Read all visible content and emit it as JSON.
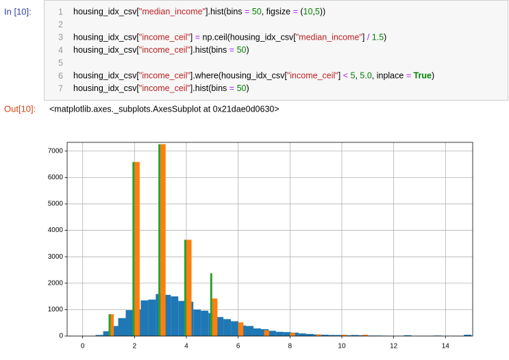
{
  "cell": {
    "prompt_in": "In [10]:",
    "code_lines": [
      {
        "number": 1,
        "code": "housing_idx_csv[\"median_income\"].hist(bins = 50, figsize = (10,5))"
      },
      {
        "number": 2
      },
      {
        "number": 3,
        "code": "housing_idx_csv[\"income_ceil\"] = np.ceil(housing_idx_csv[\"median_income\"] / 1.5)"
      },
      {
        "number": 4,
        "code": "housing_idx_csv[\"income_ceil\"].hist(bins = 50)"
      },
      {
        "number": 5
      },
      {
        "number": 6,
        "code": "housing_idx_csv[\"income_ceil\"].where(housing_idx_csv[\"income_ceil\"] < 5, 5.0, inplace = True)"
      },
      {
        "number": 7,
        "code": "housing_idx_csv[\"income_ceil\"].hist(bins = 50)"
      }
    ],
    "prompt_out": "Out[10]:",
    "output_text": "<matplotlib.axes._subplots.AxesSubplot at 0x21dae0d0630>"
  },
  "chart_data": {
    "type": "histogram",
    "xlim": [
      -0.6,
      15.05
    ],
    "ylim": [
      0,
      7330
    ],
    "xticks": [
      0,
      2,
      4,
      6,
      8,
      10,
      12,
      14
    ],
    "yticks": [
      0,
      1000,
      2000,
      3000,
      4000,
      5000,
      6000,
      7000
    ],
    "grid": true,
    "series": [
      {
        "color": "#1f77b4",
        "bins": [
          0.5,
          0.79,
          1.08,
          1.37,
          1.66,
          1.95,
          2.24,
          2.53,
          2.82,
          3.11,
          3.4,
          3.69,
          3.98,
          4.27,
          4.56,
          4.85,
          5.14,
          5.43,
          5.72,
          6.01,
          6.3,
          6.59,
          6.88,
          7.17,
          7.46,
          7.75,
          8.04,
          8.33,
          8.62,
          8.91,
          9.2,
          9.49,
          9.78,
          10.07,
          10.36,
          10.65,
          10.94,
          11.23,
          11.52,
          11.81,
          12.1,
          12.39,
          12.68,
          12.97,
          13.26,
          13.55,
          13.84,
          14.13,
          14.42,
          14.71,
          15.0
        ],
        "values": [
          40,
          180,
          380,
          680,
          980,
          1000,
          1350,
          1380,
          1590,
          1560,
          1500,
          1330,
          1300,
          1000,
          960,
          870,
          720,
          640,
          560,
          400,
          380,
          290,
          260,
          200,
          160,
          150,
          130,
          100,
          80,
          60,
          50,
          40,
          40,
          30,
          40,
          30,
          20,
          20,
          15,
          10,
          10,
          30,
          10,
          10,
          10,
          20,
          5,
          5,
          10,
          50
        ]
      },
      {
        "color": "#ff7f0e",
        "bins": [
          1,
          1.2,
          2,
          2.2,
          3,
          3.2,
          4,
          4.2,
          5,
          5.2,
          6,
          6.2,
          7,
          7.2,
          8,
          8.2,
          9,
          9.2,
          10,
          10.2,
          10.8,
          11
        ],
        "values": [
          827,
          0,
          6589,
          0,
          7261,
          0,
          3643,
          0,
          1421,
          0,
          517,
          0,
          220,
          0,
          120,
          0,
          60,
          0,
          50,
          0,
          50
        ]
      },
      {
        "color": "#2ca02c",
        "bins": [
          1,
          1.08,
          1.92,
          2,
          2.92,
          3,
          3.92,
          4,
          4.92,
          5
        ],
        "values": [
          827,
          0,
          6589,
          0,
          7261,
          0,
          3643,
          0,
          2377
        ]
      }
    ]
  }
}
